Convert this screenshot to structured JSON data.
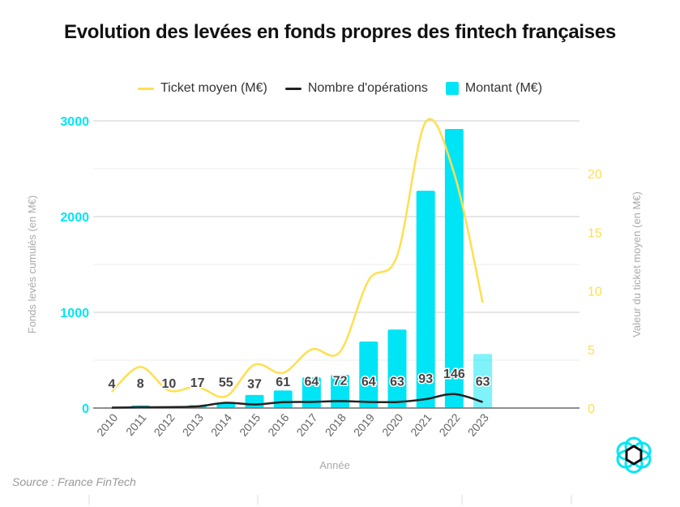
{
  "chart_data": {
    "type": "bar",
    "title": "Evolution des levées en fonds propres des fintech françaises",
    "xlabel": "Année",
    "ylabel": "Fonds levés cumulés (en M€)",
    "y2label": "Valeur du ticket moyen (en M€)",
    "ylim": [
      0,
      3000
    ],
    "y2lim": [
      0,
      25
    ],
    "yticks": [
      "0",
      "1000",
      "2000",
      "3000"
    ],
    "y2ticks": [
      "0",
      "5",
      "10",
      "15",
      "20"
    ],
    "grid": true,
    "legend_position": "top",
    "categories": [
      "2010",
      "2011",
      "2012",
      "2013",
      "2014",
      "2015",
      "2016",
      "2017",
      "2018",
      "2019",
      "2020",
      "2021",
      "2022",
      "2023"
    ],
    "series": [
      {
        "name": "Ticket moyen (M€)",
        "type": "line",
        "axis": "right",
        "color": "#FFDF4F",
        "values": [
          1.4,
          3.5,
          1.5,
          1.8,
          1.0,
          3.7,
          3.0,
          5.0,
          4.8,
          10.9,
          13.0,
          24.4,
          20.0,
          9.0
        ]
      },
      {
        "name": "Nombre d'opérations",
        "type": "line",
        "axis": "left",
        "color": "#222222",
        "values": [
          4,
          8,
          10,
          17,
          55,
          37,
          61,
          64,
          72,
          64,
          63,
          93,
          146,
          63
        ],
        "labels": [
          "4",
          "8",
          "10",
          "17",
          "55",
          "37",
          "61",
          "64",
          "72",
          "64",
          "63",
          "93",
          "146",
          "63"
        ]
      },
      {
        "name": "Montant (M€)",
        "type": "bar",
        "axis": "left",
        "color": "#00E5F5",
        "values": [
          5,
          28,
          15,
          30,
          55,
          137,
          183,
          320,
          346,
          695,
          820,
          2270,
          2915,
          565
        ]
      }
    ]
  },
  "source": "Source : France FinTech",
  "colors": {
    "cyan": "#00E5F5",
    "yellow": "#FFDF4F",
    "dark": "#222222"
  }
}
